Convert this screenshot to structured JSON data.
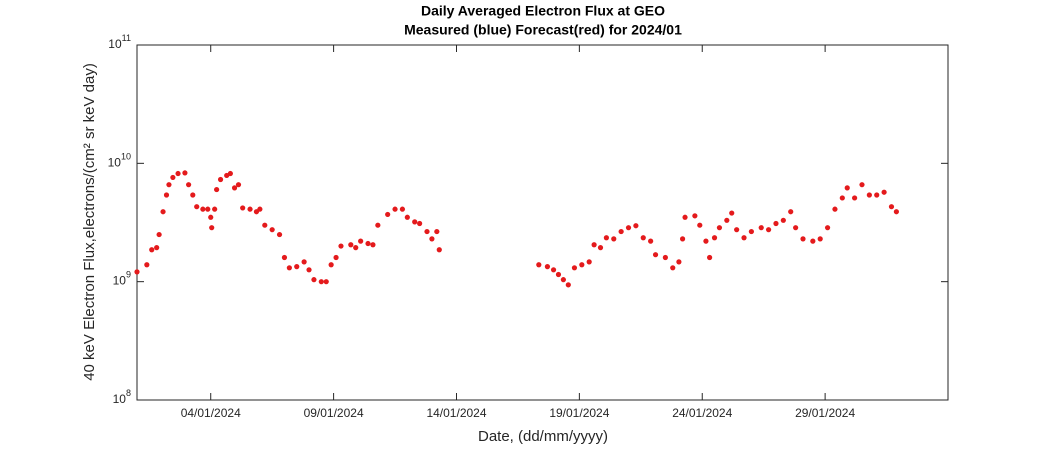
{
  "chart_data": {
    "type": "scatter",
    "title": "Daily Averaged Electron Flux at GEO",
    "subtitle": "Measured (blue) Forecast(red) for 2024/01",
    "x_label": "Date, (dd/mm/yyyy)",
    "y_label": "40 keV Electron Flux,electrons/(cm² sr keV day)",
    "log_y": true,
    "grid": false,
    "color": "#e41a1c",
    "xlim": [
      1,
      34
    ],
    "xticks": [
      {
        "value": 4,
        "label": "04/01/2024"
      },
      {
        "value": 9,
        "label": "09/01/2024"
      },
      {
        "value": 14,
        "label": "14/01/2024"
      },
      {
        "value": 19,
        "label": "19/01/2024"
      },
      {
        "value": 24,
        "label": "24/01/2024"
      },
      {
        "value": 29,
        "label": "29/01/2024"
      }
    ],
    "ylim": [
      100000000,
      100000000000
    ],
    "yticks": [
      {
        "value": 100000000,
        "label": "10",
        "exponent": "8"
      },
      {
        "value": 1000000000,
        "label": "10",
        "exponent": "9"
      },
      {
        "value": 10000000000,
        "label": "10",
        "exponent": "10"
      },
      {
        "value": 100000000000,
        "label": "10",
        "exponent": "11"
      }
    ],
    "x": [
      1.0,
      1.4,
      1.6,
      1.8,
      1.9,
      2.06,
      2.2,
      2.3,
      2.46,
      2.67,
      2.95,
      3.1,
      3.27,
      3.43,
      3.68,
      3.88,
      4.0,
      4.04,
      4.16,
      4.24,
      4.4,
      4.65,
      4.8,
      4.97,
      5.13,
      5.3,
      5.6,
      5.86,
      6.0,
      6.2,
      6.5,
      6.8,
      7.0,
      7.2,
      7.5,
      7.8,
      8.0,
      8.2,
      8.5,
      8.7,
      8.9,
      9.1,
      9.3,
      9.7,
      9.9,
      10.1,
      10.4,
      10.6,
      10.8,
      11.2,
      11.5,
      11.8,
      12.0,
      12.3,
      12.5,
      12.8,
      13.0,
      13.2,
      13.3,
      17.35,
      17.7,
      17.95,
      18.15,
      18.35,
      18.55,
      18.8,
      19.1,
      19.4,
      19.6,
      19.86,
      20.1,
      20.4,
      20.7,
      21.0,
      21.3,
      21.6,
      21.9,
      22.1,
      22.5,
      22.8,
      23.05,
      23.2,
      23.3,
      23.7,
      23.9,
      24.15,
      24.3,
      24.5,
      24.7,
      25.0,
      25.2,
      25.4,
      25.7,
      26.0,
      26.4,
      26.7,
      27.0,
      27.3,
      27.6,
      27.8,
      28.1,
      28.5,
      28.8,
      29.1,
      29.4,
      29.7,
      29.9,
      30.2,
      30.5,
      30.8,
      31.1,
      31.4,
      31.7,
      31.9
    ],
    "values": [
      1210000000,
      1390000000,
      1860000000,
      1940000000,
      2500000000,
      3900000000,
      5400000000,
      6600000000,
      7600000000,
      8200000000,
      8300000000,
      6600000000,
      5400000000,
      4300000000,
      4100000000,
      4100000000,
      3500000000,
      2860000000,
      4100000000,
      6000000000,
      7300000000,
      7900000000,
      8200000000,
      6200000000,
      6600000000,
      4200000000,
      4100000000,
      3900000000,
      4100000000,
      3000000000,
      2750000000,
      2500000000,
      1600000000,
      1310000000,
      1340000000,
      1470000000,
      1260000000,
      1040000000,
      1000000000,
      1000000000,
      1390000000,
      1600000000,
      2000000000,
      2050000000,
      1940000000,
      2200000000,
      2100000000,
      2050000000,
      3000000000,
      3700000000,
      4100000000,
      4100000000,
      3500000000,
      3200000000,
      3100000000,
      2650000000,
      2300000000,
      2650000000,
      1860000000,
      1390000000,
      1340000000,
      1260000000,
      1150000000,
      1040000000,
      940000000,
      1310000000,
      1390000000,
      1470000000,
      2050000000,
      1940000000,
      2350000000,
      2300000000,
      2650000000,
      2860000000,
      2970000000,
      2350000000,
      2200000000,
      1690000000,
      1600000000,
      1310000000,
      1470000000,
      2300000000,
      3500000000,
      3600000000,
      3000000000,
      2200000000,
      1600000000,
      2350000000,
      2860000000,
      3300000000,
      3800000000,
      2750000000,
      2350000000,
      2650000000,
      2860000000,
      2750000000,
      3100000000,
      3300000000,
      3900000000,
      2860000000,
      2300000000,
      2200000000,
      2300000000,
      2860000000,
      4100000000,
      5100000000,
      6200000000,
      5100000000,
      6600000000,
      5400000000,
      5400000000,
      5700000000,
      4300000000,
      3900000000
    ]
  }
}
